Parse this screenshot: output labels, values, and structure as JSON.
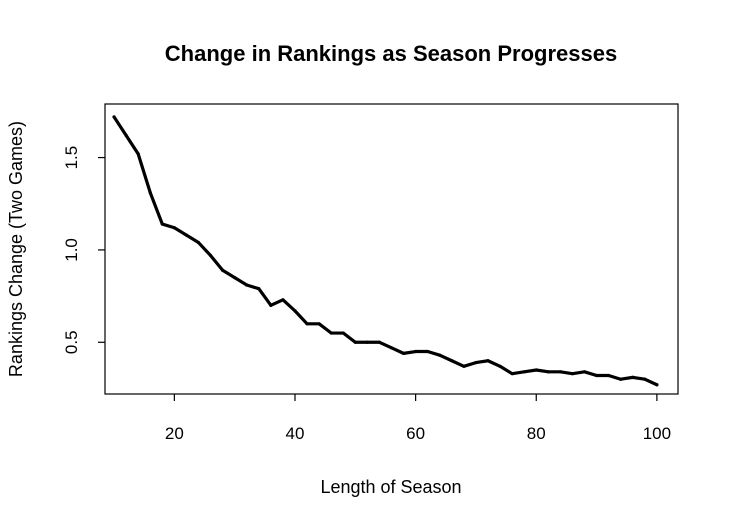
{
  "chart_data": {
    "type": "line",
    "title": "Change in Rankings as Season Progresses",
    "xlabel": "Length of Season",
    "ylabel": "Rankings Change (Two Games)",
    "xlim": [
      8.5,
      103.5
    ],
    "ylim": [
      0.22,
      1.79
    ],
    "xticks": [
      20,
      40,
      60,
      80,
      100
    ],
    "yticks": [
      0.5,
      1.0,
      1.5
    ],
    "xtick_labels": [
      "20",
      "40",
      "60",
      "80",
      "100"
    ],
    "ytick_labels": [
      "0.5",
      "1.0",
      "1.5"
    ],
    "grid": false,
    "legend": "none",
    "line_color": "#000000",
    "series": [
      {
        "x": [
          10,
          12,
          14,
          16,
          18,
          20,
          22,
          24,
          26,
          28,
          30,
          32,
          34,
          36,
          38,
          40,
          42,
          44,
          46,
          48,
          50,
          52,
          54,
          56,
          58,
          60,
          62,
          64,
          66,
          68,
          70,
          72,
          74,
          76,
          78,
          80,
          82,
          84,
          86,
          88,
          90,
          92,
          94,
          96,
          98,
          100
        ],
        "y": [
          1.72,
          1.62,
          1.52,
          1.31,
          1.14,
          1.12,
          1.08,
          1.04,
          0.97,
          0.89,
          0.85,
          0.81,
          0.79,
          0.7,
          0.73,
          0.67,
          0.6,
          0.6,
          0.55,
          0.55,
          0.5,
          0.5,
          0.5,
          0.47,
          0.44,
          0.45,
          0.45,
          0.43,
          0.4,
          0.37,
          0.39,
          0.4,
          0.37,
          0.33,
          0.34,
          0.35,
          0.34,
          0.34,
          0.33,
          0.34,
          0.32,
          0.32,
          0.3,
          0.31,
          0.3,
          0.27
        ]
      }
    ]
  }
}
